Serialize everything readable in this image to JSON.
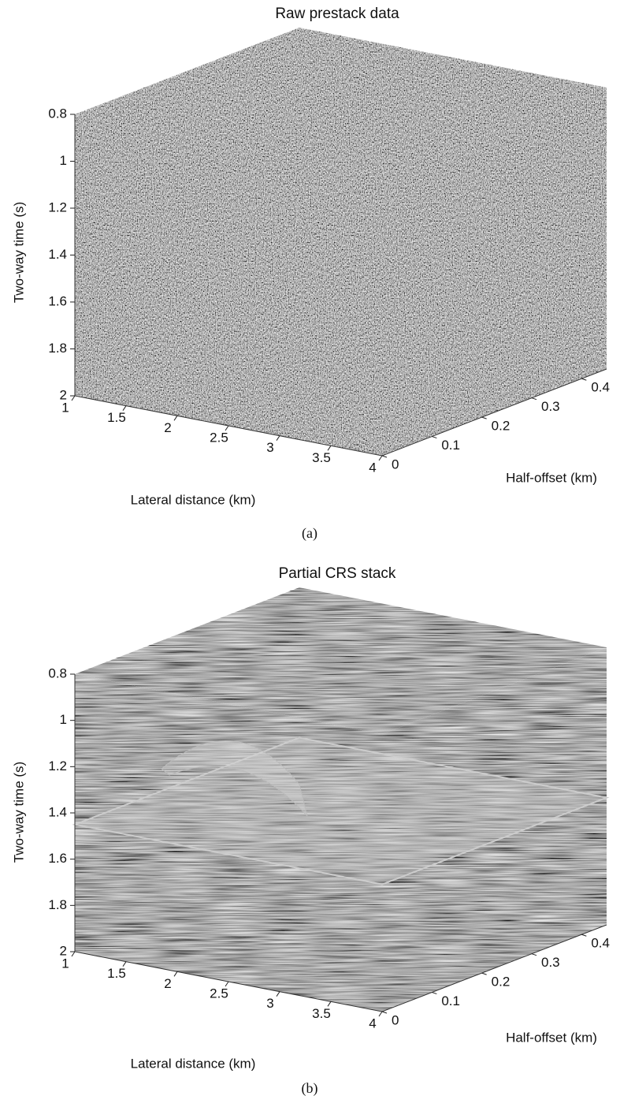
{
  "chart_data": [
    {
      "type": "cube3d",
      "title": "Raw prestack data",
      "caption": "(a)",
      "xlabel": "Lateral distance (km)",
      "ylabel": "Two-way time (s)",
      "zlabel": "Half-offset (km)",
      "xlim": [
        1,
        4
      ],
      "ylim": [
        0.8,
        2
      ],
      "zlim": [
        0,
        0.45
      ],
      "yreverse": true,
      "xticks": [
        1,
        1.5,
        2,
        2.5,
        3,
        3.5,
        4
      ],
      "yticks": [
        0.8,
        1,
        1.2,
        1.4,
        1.6,
        1.8,
        2
      ],
      "zticks": [
        0,
        0.1,
        0.2,
        0.3,
        0.4
      ]
    },
    {
      "type": "cube3d",
      "title": "Partial CRS stack",
      "caption": "(b)",
      "xlabel": "Lateral distance (km)",
      "ylabel": "Two-way time (s)",
      "zlabel": "Half-offset (km)",
      "xlim": [
        1,
        4
      ],
      "ylim": [
        0.8,
        2
      ],
      "zlim": [
        0,
        0.45
      ],
      "yreverse": true,
      "xticks": [
        1,
        1.5,
        2,
        2.5,
        3,
        3.5,
        4
      ],
      "yticks": [
        0.8,
        1,
        1.2,
        1.4,
        1.6,
        1.8,
        2
      ],
      "zticks": [
        0,
        0.1,
        0.2,
        0.3,
        0.4
      ]
    }
  ]
}
